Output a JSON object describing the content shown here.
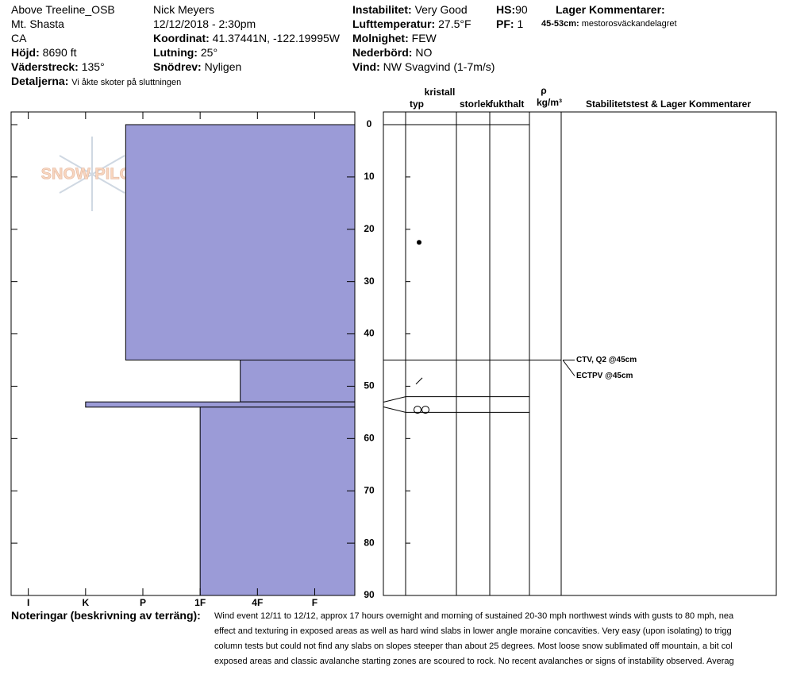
{
  "header": {
    "location": "Above Treeline_OSB",
    "range": "Mt. Shasta",
    "state": "CA",
    "elevation": {
      "label": "Höjd:",
      "value": "8690 ft"
    },
    "aspect": {
      "label": "Väderstreck:",
      "value": "135°"
    },
    "details": {
      "label": "Detaljerna:",
      "value": "Vi åkte skoter på sluttningen"
    },
    "observer": "Nick Meyers",
    "datetime": "12/12/2018 - 2:30pm",
    "coords": {
      "label": "Koordinat:",
      "value": "41.37441N, -122.19995W"
    },
    "slope": {
      "label": "Lutning:",
      "value": "25°"
    },
    "wind_loading": {
      "label": "Snödrev:",
      "value": "Nyligen"
    },
    "stability": {
      "label": "Instabilitet:",
      "value": "Very Good"
    },
    "air_temp": {
      "label": "Lufttemperatur:",
      "value": "27.5°F"
    },
    "sky": {
      "label": "Molnighet:",
      "value": "FEW"
    },
    "precip": {
      "label": "Nederbörd:",
      "value": "NO"
    },
    "wind": {
      "label": "Vind:",
      "value": "NW Svagvind (1-7m/s)"
    },
    "hs": {
      "label": "HS:",
      "value": "90"
    },
    "pf": {
      "label": "PF:",
      "value": "1"
    },
    "layer_comments_title": "Lager Kommentarer:",
    "layer_comment": {
      "label": "45-53cm:",
      "value": "mestorosväckandelagret"
    }
  },
  "logo": "SNOW PILOT",
  "chart_data": {
    "type": "hardness_profile",
    "color": "#9b9bd7",
    "xlim": [
      6.3,
      0.3
    ],
    "xticks": [
      {
        "value": 6,
        "label": "I"
      },
      {
        "value": 5,
        "label": "K"
      },
      {
        "value": 4,
        "label": "P"
      },
      {
        "value": 3,
        "label": "1F"
      },
      {
        "value": 2,
        "label": "4F"
      },
      {
        "value": 1,
        "label": "F"
      }
    ],
    "ylim": [
      0,
      90
    ],
    "yticks": [
      0,
      10,
      20,
      30,
      40,
      50,
      60,
      70,
      80,
      90
    ],
    "layers": [
      {
        "top": 0,
        "bottom": 45,
        "hardness": 4.3
      },
      {
        "top": 45,
        "bottom": 53,
        "hardness": 2.3
      },
      {
        "top": 53,
        "bottom": 54,
        "hardness": 5
      },
      {
        "top": 54,
        "bottom": 90,
        "hardness": 3
      }
    ],
    "column_headers": {
      "crystal": "kristall",
      "type": "typ",
      "size": "storlek",
      "moisture": "fukthalt",
      "rho": "ρ",
      "density_unit": "kg/m³",
      "comments": "Stabilitetstest & Lager Kommentarer"
    },
    "strata_lines": [
      0,
      45,
      52,
      55
    ],
    "grains": [
      22.5,
      49,
      54.5
    ],
    "tests": [
      {
        "label": "CTV, Q2 @45cm",
        "depth": 45
      },
      {
        "label": "ECTPV @45cm",
        "depth": 45
      }
    ]
  },
  "notes": {
    "label": "Noteringar (beskrivning av terräng):",
    "lines": [
      "Wind event 12/11 to 12/12, approx 17 hours overnight and morning of sustained 20-30 mph northwest winds with gusts to 80 mph, nea",
      "effect and texturing in exposed areas as well as hard wind slabs in lower angle moraine concavities. Very easy (upon isolating) to trigg",
      "column tests but could not find any slabs on slopes steeper than about 25 degrees. Most loose snow sublimated off mountain, a bit col",
      "exposed areas and classic avalanche starting zones are scoured to rock. No recent avalanches or signs of instability observed. Averag"
    ]
  }
}
